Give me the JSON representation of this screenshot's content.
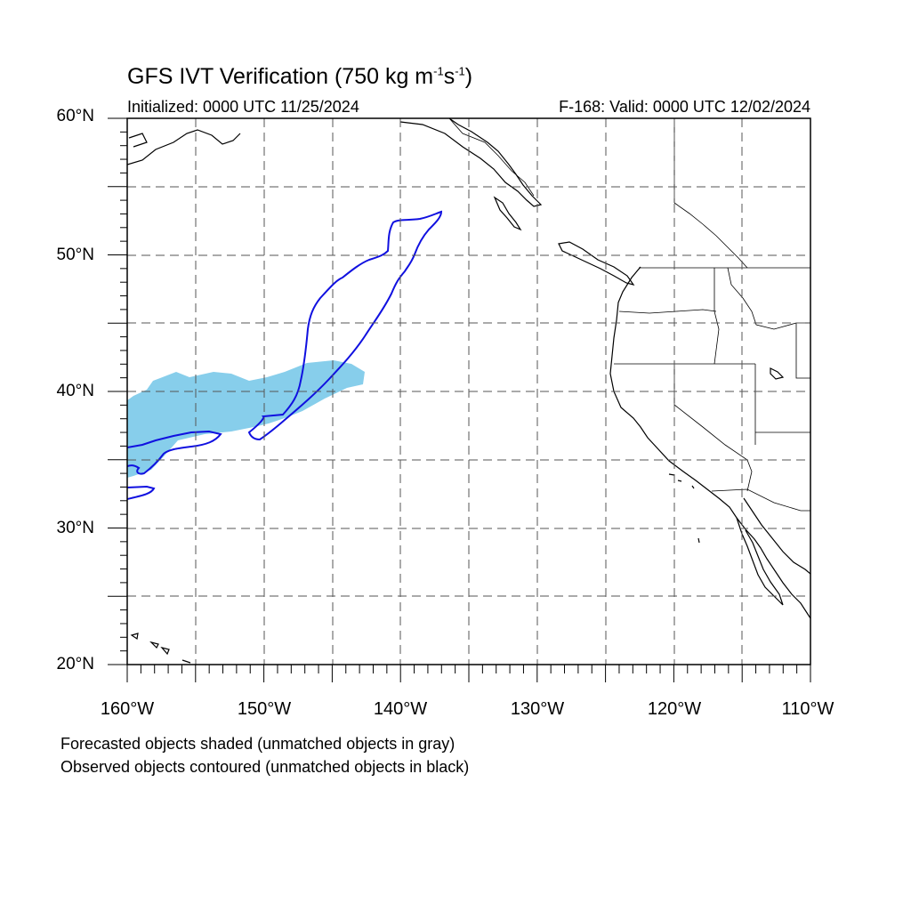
{
  "title": "GFS IVT Verification (750 kg m",
  "title_exp1": "-1",
  "title_mid": "s",
  "title_exp2": "-1",
  "title_end": ")",
  "initialized": "Initialized: 0000 UTC 11/25/2024",
  "valid": "F-168: Valid: 0000 UTC 12/02/2024",
  "lat_labels": [
    "60°N",
    "50°N",
    "40°N",
    "30°N",
    "20°N"
  ],
  "lon_labels": [
    "160°W",
    "150°W",
    "140°W",
    "130°W",
    "120°W",
    "110°W"
  ],
  "legend": {
    "forecast_note": "Forecasted objects shaded (unmatched objects in gray)",
    "observed_note": "Observed objects contoured (unmatched objects in black)"
  },
  "map_extent": {
    "lon": [
      -160,
      -110
    ],
    "lat": [
      20,
      60
    ]
  },
  "colors": {
    "forecast_fill": "#87ceeb",
    "observed_contour": "#1010e0",
    "coastline": "#000000",
    "grid": "#555555"
  }
}
